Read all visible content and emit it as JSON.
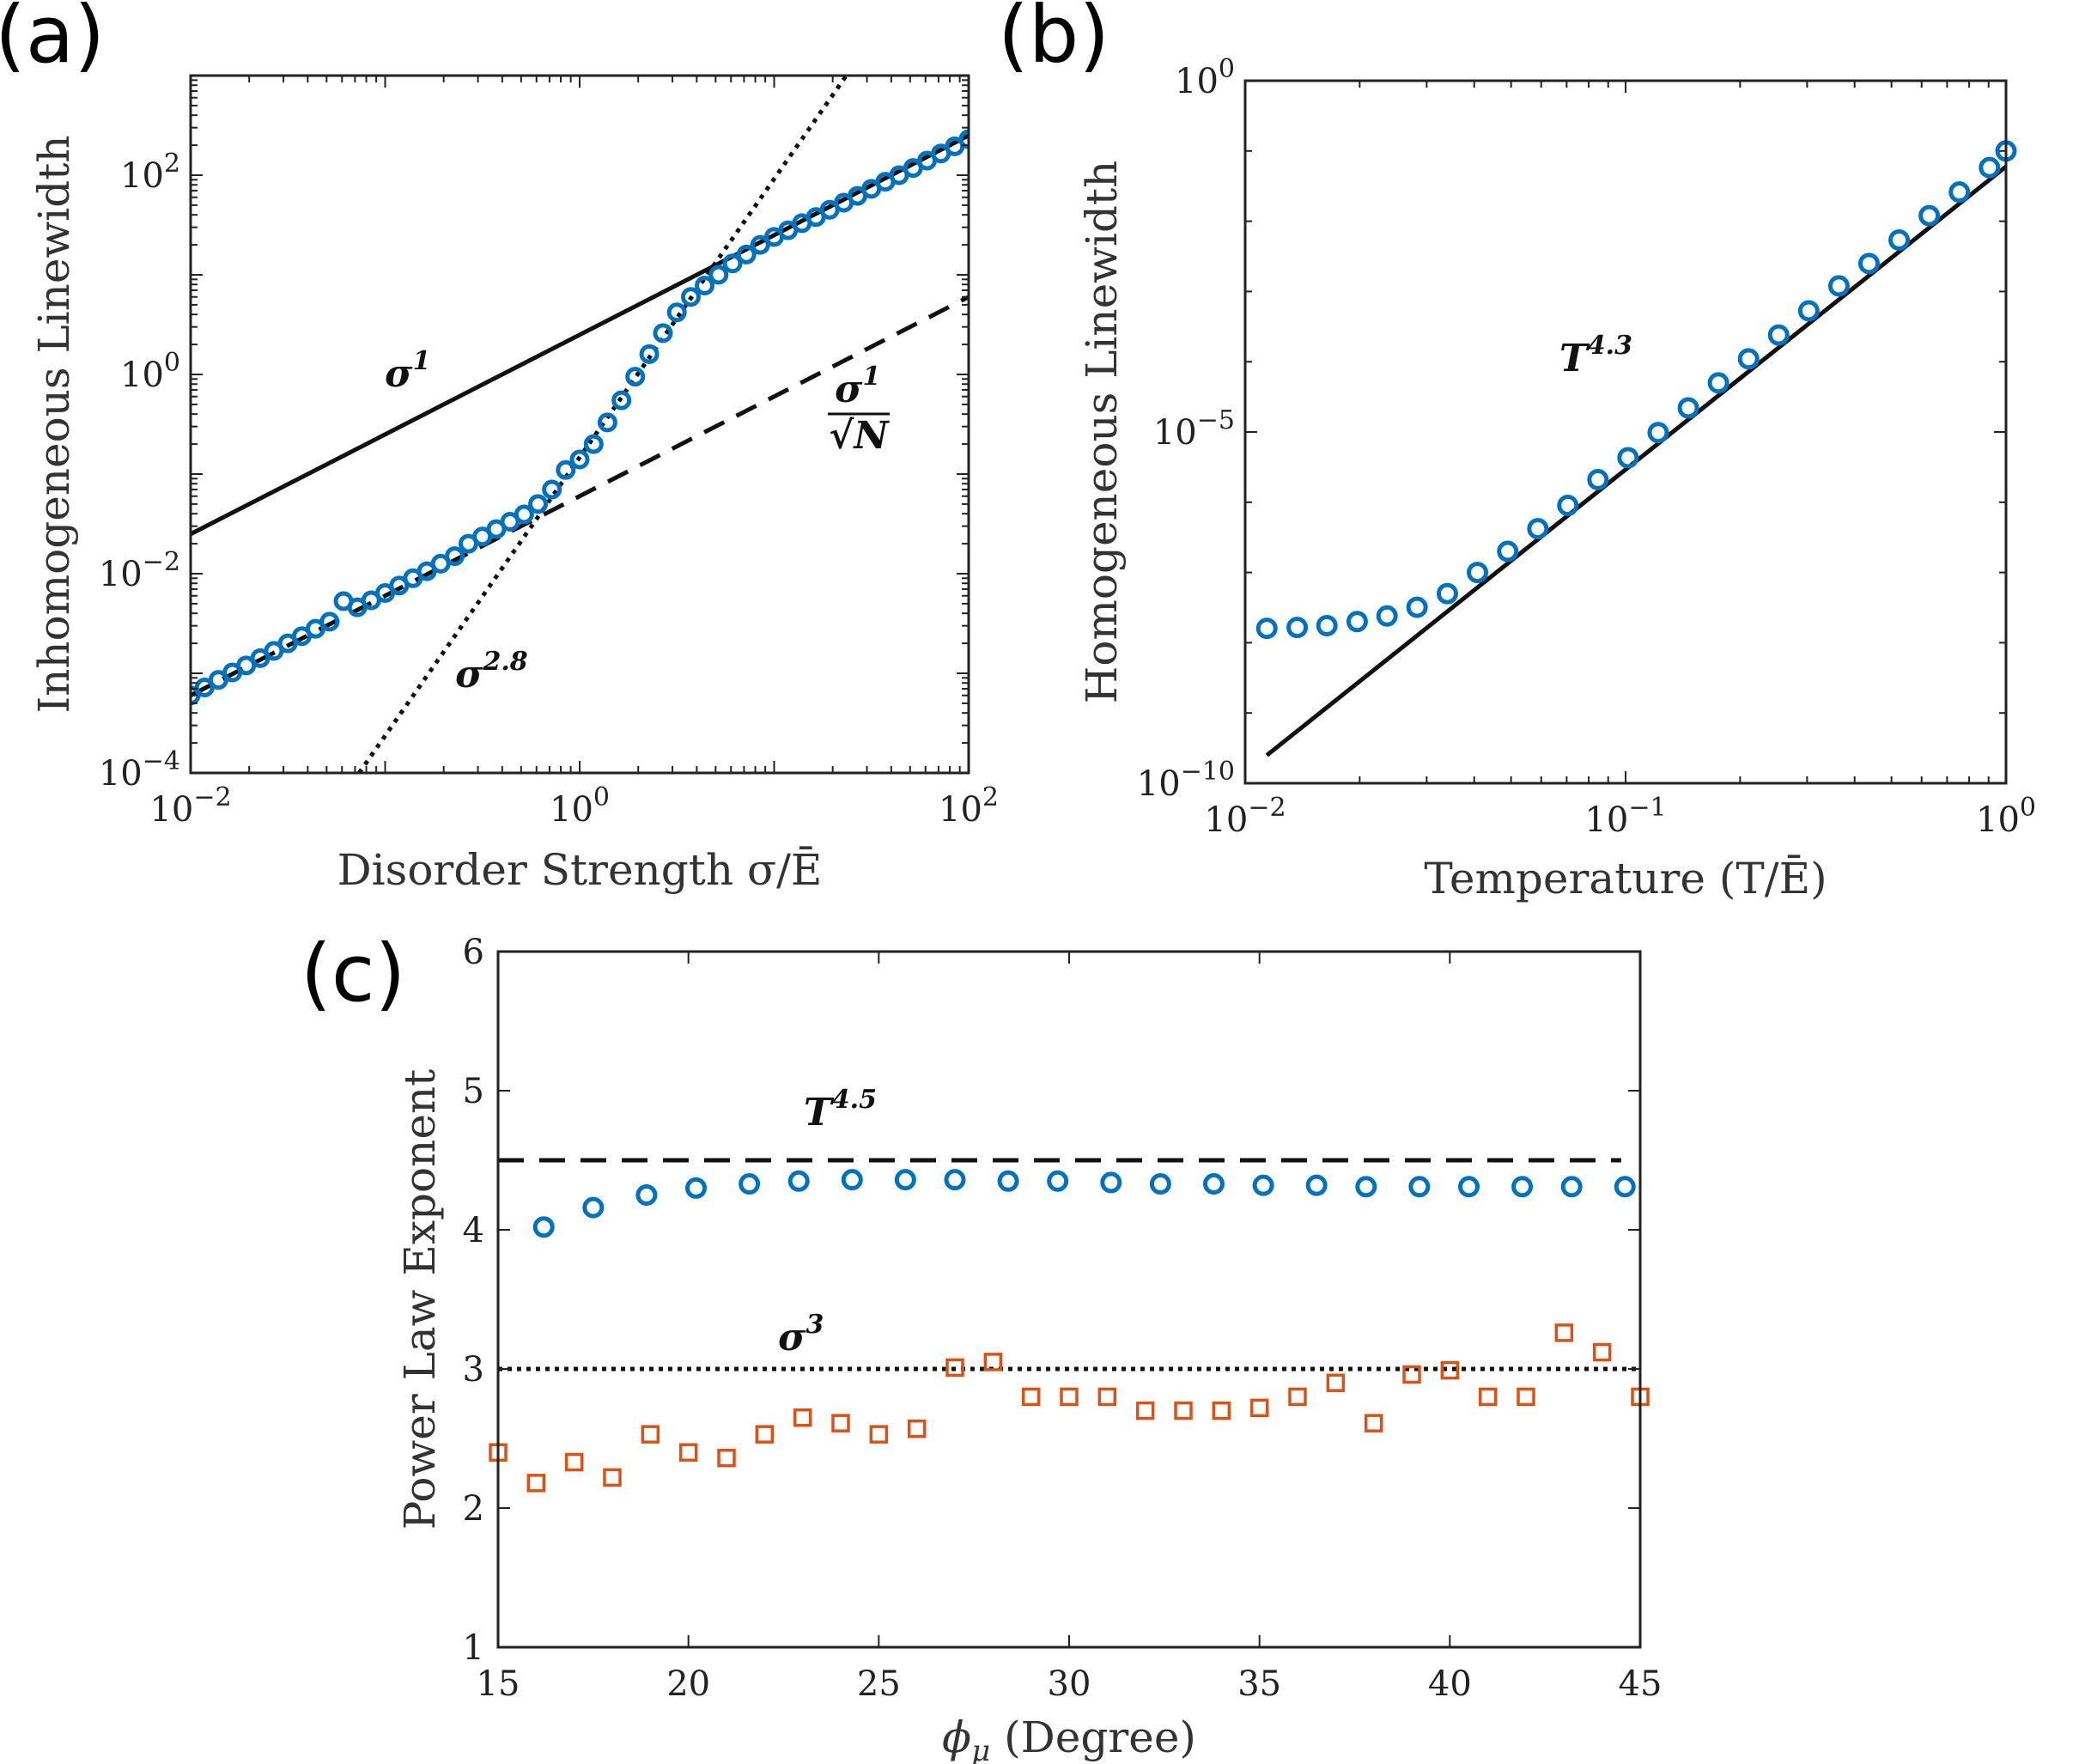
{
  "chart_data": [
    {
      "panel": "(a)",
      "type": "scatter",
      "xlabel": "Disorder Strength σ/Ē",
      "ylabel": "Inhomogeneous Linewidth",
      "xscale": "log",
      "yscale": "log",
      "xlim": [
        0.01,
        100
      ],
      "ylim": [
        0.0001,
        1000
      ],
      "x_ticks": [
        {
          "value": 0.01,
          "base": "10",
          "exp": "−2"
        },
        {
          "value": 1,
          "base": "10",
          "exp": "0"
        },
        {
          "value": 100,
          "base": "10",
          "exp": "2"
        }
      ],
      "y_ticks": [
        {
          "value": 0.0001,
          "base": "10",
          "exp": "−4"
        },
        {
          "value": 0.01,
          "base": "10",
          "exp": "−2"
        },
        {
          "value": 1,
          "base": "10",
          "exp": "0"
        },
        {
          "value": 100,
          "base": "10",
          "exp": "2"
        }
      ],
      "markers": {
        "color": "#0072BD",
        "shape": "circle",
        "x": [
          0.01,
          0.0118,
          0.0139,
          0.0164,
          0.0193,
          0.0228,
          0.0268,
          0.0316,
          0.0373,
          0.0439,
          0.0518,
          0.0611,
          0.072,
          0.0848,
          0.1,
          0.118,
          0.139,
          0.164,
          0.193,
          0.228,
          0.268,
          0.316,
          0.373,
          0.439,
          0.518,
          0.611,
          0.72,
          0.848,
          1.0,
          1.18,
          1.39,
          1.64,
          1.93,
          2.28,
          2.68,
          3.16,
          3.73,
          4.39,
          5.18,
          6.11,
          7.2,
          8.48,
          10.0,
          11.8,
          13.9,
          16.4,
          19.3,
          22.8,
          26.8,
          31.6,
          37.3,
          43.9,
          51.8,
          61.1,
          72.0,
          84.8,
          100.0
        ],
        "y": [
          0.0006,
          0.00072,
          0.00086,
          0.00102,
          0.0012,
          0.00142,
          0.00168,
          0.002,
          0.00236,
          0.0028,
          0.0033,
          0.0053,
          0.0046,
          0.0054,
          0.0064,
          0.0076,
          0.009,
          0.0106,
          0.0126,
          0.015,
          0.02,
          0.0236,
          0.028,
          0.0332,
          0.0393,
          0.05,
          0.07,
          0.11,
          0.14,
          0.2,
          0.33,
          0.55,
          0.95,
          1.6,
          2.6,
          4.2,
          6.0,
          7.8,
          10.0,
          13.0,
          16.0,
          20.0,
          24.0,
          28.0,
          33.0,
          38.0,
          45.0,
          53.0,
          62.0,
          73.0,
          86.0,
          100.0,
          118.0,
          140.0,
          165.0,
          195.0,
          230.0
        ]
      },
      "lines": [
        {
          "style": "solid",
          "label": "σ",
          "exponent": "1",
          "x": [
            0.01,
            100
          ],
          "y": [
            0.025,
            250
          ]
        },
        {
          "style": "dashed",
          "label": "σ",
          "exponent": "1",
          "denominator": "√N",
          "x": [
            0.01,
            100
          ],
          "y": [
            0.0006,
            6.0
          ]
        },
        {
          "style": "dotted",
          "label": "σ",
          "exponent": "2.8",
          "x": [
            0.0735,
            23.5
          ],
          "y": [
            0.0001,
            1000
          ]
        }
      ]
    },
    {
      "panel": "(b)",
      "type": "scatter",
      "xlabel": "Temperature (T/Ē)",
      "ylabel": "Homogeneous Linewidth",
      "xscale": "log",
      "yscale": "log",
      "xlim": [
        0.01,
        1
      ],
      "ylim": [
        1e-10,
        1
      ],
      "x_ticks": [
        {
          "value": 0.01,
          "base": "10",
          "exp": "−2"
        },
        {
          "value": 0.1,
          "base": "10",
          "exp": "−1"
        },
        {
          "value": 1,
          "base": "10",
          "exp": "0"
        }
      ],
      "y_ticks": [
        {
          "value": 1e-10,
          "base": "10",
          "exp": "−10"
        },
        {
          "value": 1e-05,
          "base": "10",
          "exp": "−5"
        },
        {
          "value": 1,
          "base": "10",
          "exp": "0"
        }
      ],
      "markers": {
        "color": "#0072BD",
        "shape": "circle",
        "x": [
          0.0114,
          0.0137,
          0.0164,
          0.0197,
          0.0236,
          0.0283,
          0.034,
          0.0408,
          0.049,
          0.0588,
          0.0705,
          0.0846,
          0.1015,
          0.1218,
          0.1462,
          0.1754,
          0.2105,
          0.2526,
          0.3031,
          0.3637,
          0.4364,
          0.5237,
          0.6284,
          0.7541,
          0.905,
          1.0
        ],
        "y": [
          1.6e-08,
          1.65e-08,
          1.75e-08,
          2e-08,
          2.4e-08,
          3.2e-08,
          5e-08,
          1e-07,
          2e-07,
          4.2e-07,
          9e-07,
          2.1e-06,
          4.3e-06,
          9.8e-06,
          2.2e-05,
          5e-05,
          0.00011,
          0.00024,
          0.00053,
          0.0012,
          0.0025,
          0.0054,
          0.012,
          0.026,
          0.058,
          0.1
        ]
      },
      "lines": [
        {
          "style": "solid",
          "label": "T",
          "exponent": "4.3",
          "x": [
            0.0114,
            1.0
          ],
          "y": [
            2.5e-10,
            0.06
          ]
        }
      ]
    },
    {
      "panel": "(c)",
      "type": "scatter",
      "xlabel": "ϕμ (Degree)",
      "ylabel": "Power Law Exponent",
      "xlim": [
        15,
        45
      ],
      "ylim": [
        1,
        6
      ],
      "x_ticks": [
        "15",
        "20",
        "25",
        "30",
        "35",
        "40",
        "45"
      ],
      "y_ticks": [
        "1",
        "2",
        "3",
        "4",
        "5",
        "6"
      ],
      "series": [
        {
          "marker": "circle",
          "color": "#0072BD",
          "x": [
            16.2,
            17.5,
            18.9,
            20.2,
            21.6,
            22.9,
            24.3,
            25.7,
            27.0,
            28.4,
            29.7,
            31.1,
            32.4,
            33.8,
            35.1,
            36.5,
            37.8,
            39.2,
            40.5,
            41.9,
            43.2,
            44.6
          ],
          "y": [
            4.02,
            4.16,
            4.25,
            4.3,
            4.33,
            4.35,
            4.36,
            4.36,
            4.36,
            4.35,
            4.35,
            4.34,
            4.33,
            4.33,
            4.32,
            4.32,
            4.31,
            4.31,
            4.31,
            4.31,
            4.31,
            4.31
          ]
        },
        {
          "marker": "square",
          "color": "#D95319",
          "x": [
            15,
            16,
            17,
            18,
            19,
            20,
            21,
            22,
            23,
            24,
            25,
            26,
            27,
            28,
            29,
            30,
            31,
            32,
            33,
            34,
            35,
            36,
            37,
            38,
            39,
            40,
            41,
            42,
            43,
            44,
            45
          ],
          "y": [
            2.4,
            2.18,
            2.33,
            2.22,
            2.53,
            2.4,
            2.36,
            2.53,
            2.65,
            2.61,
            2.53,
            2.57,
            3.01,
            3.05,
            2.8,
            2.8,
            2.8,
            2.7,
            2.7,
            2.7,
            2.72,
            2.8,
            2.9,
            2.61,
            2.96,
            2.99,
            2.8,
            2.8,
            3.26,
            3.12,
            2.8
          ]
        }
      ],
      "lines": [
        {
          "style": "dashed",
          "label": "T",
          "exponent": "4.5",
          "y": 4.5,
          "x": [
            15,
            44.5
          ]
        },
        {
          "style": "dotted",
          "label": "σ",
          "exponent": "3",
          "y": 3.0,
          "x": [
            15,
            45
          ]
        }
      ]
    }
  ],
  "labels": {
    "panel_a": "(a)",
    "panel_b": "(b)",
    "panel_c": "(c)"
  }
}
